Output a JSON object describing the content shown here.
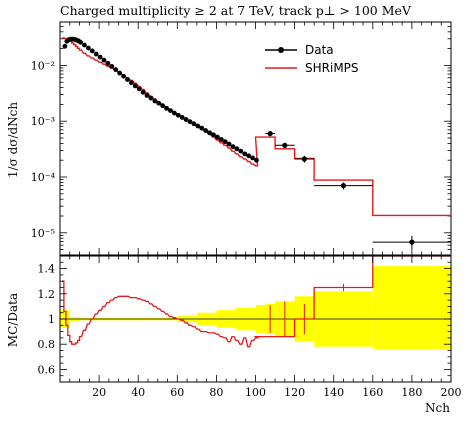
{
  "chart_data": {
    "type": "line",
    "title": "Charged multiplicity ≥ 2 at 7 TeV, track p⊥ > 100 MeV",
    "main_panel": {
      "xlim": [
        0,
        200
      ],
      "ylim": [
        4e-06,
        0.06
      ],
      "yscale": "log",
      "ylabel": "1/σ dσ/dNch",
      "y_ticks": [
        {
          "value": 0.01,
          "label": "10⁻²"
        },
        {
          "value": 0.001,
          "label": "10⁻³"
        },
        {
          "value": 0.0001,
          "label": "10⁻⁴"
        },
        {
          "value": 1e-05,
          "label": "10⁻⁵"
        }
      ],
      "legend": {
        "placement": "top-right",
        "entries": [
          {
            "label": "Data",
            "color": "#000000",
            "marker": "dot-errorbar"
          },
          {
            "label": "SHRiMPS",
            "color": "#e41a1c",
            "marker": "line"
          }
        ]
      }
    },
    "ratio_panel": {
      "ylabel": "MC/Data",
      "ylim": [
        0.5,
        1.5
      ],
      "y_ticks": [
        {
          "value": 0.6,
          "label": "0.6"
        },
        {
          "value": 0.8,
          "label": "0.8"
        },
        {
          "value": 1.0,
          "label": "1"
        },
        {
          "value": 1.2,
          "label": "1.2"
        },
        {
          "value": 1.4,
          "label": "1.4"
        }
      ],
      "band_color": "#ffff00"
    },
    "x_axis": {
      "xlabel": "Nch",
      "x_ticks": [
        {
          "value": 20,
          "label": "20"
        },
        {
          "value": 40,
          "label": "40"
        },
        {
          "value": 60,
          "label": "60"
        },
        {
          "value": 80,
          "label": "80"
        },
        {
          "value": 100,
          "label": "100"
        },
        {
          "value": 120,
          "label": "120"
        },
        {
          "value": 140,
          "label": "140"
        },
        {
          "value": 160,
          "label": "160"
        },
        {
          "value": 180,
          "label": "180"
        },
        {
          "value": 200,
          "label": "200"
        }
      ]
    },
    "data_fine": [
      [
        2,
        0.022
      ],
      [
        3,
        0.027
      ],
      [
        4,
        0.029
      ],
      [
        5,
        0.0295
      ],
      [
        6,
        0.0295
      ],
      [
        7,
        0.0292
      ],
      [
        8,
        0.0285
      ],
      [
        9,
        0.0275
      ],
      [
        10,
        0.026
      ],
      [
        12,
        0.0232
      ],
      [
        14,
        0.0205
      ],
      [
        16,
        0.0182
      ],
      [
        18,
        0.016
      ],
      [
        20,
        0.0141
      ],
      [
        22,
        0.0124
      ],
      [
        24,
        0.0109
      ],
      [
        26,
        0.0096
      ],
      [
        28,
        0.0084
      ],
      [
        30,
        0.0073
      ],
      [
        32,
        0.0064
      ],
      [
        34,
        0.0056
      ],
      [
        36,
        0.0049
      ],
      [
        38,
        0.0043
      ],
      [
        40,
        0.0038
      ],
      [
        42,
        0.0033
      ],
      [
        44,
        0.0029
      ],
      [
        46,
        0.0026
      ],
      [
        48,
        0.0023
      ],
      [
        50,
        0.0021
      ],
      [
        52,
        0.0019
      ],
      [
        54,
        0.0017
      ],
      [
        56,
        0.00155
      ],
      [
        58,
        0.0014
      ],
      [
        60,
        0.00128
      ],
      [
        62,
        0.00117
      ],
      [
        64,
        0.00107
      ],
      [
        66,
        0.00098
      ],
      [
        68,
        0.0009
      ],
      [
        70,
        0.00082
      ],
      [
        72,
        0.00075
      ],
      [
        74,
        0.00068
      ],
      [
        76,
        0.00062
      ],
      [
        78,
        0.00057
      ],
      [
        80,
        0.00052
      ],
      [
        82,
        0.00047
      ],
      [
        84,
        0.00043
      ],
      [
        86,
        0.00039
      ],
      [
        88,
        0.00035
      ],
      [
        90,
        0.00032
      ],
      [
        92,
        0.00029
      ],
      [
        94,
        0.00026
      ],
      [
        96,
        0.00024
      ],
      [
        98,
        0.00022
      ],
      [
        100,
        0.0002
      ]
    ],
    "data_wide": [
      {
        "x": 107.5,
        "xlo": 105,
        "xhi": 110,
        "y": 0.0006,
        "ylo": 0.00054,
        "yhi": 0.00066
      },
      {
        "x": 115,
        "xlo": 110,
        "xhi": 120,
        "y": 0.00037,
        "ylo": 0.00033,
        "yhi": 0.00041
      },
      {
        "x": 125,
        "xlo": 120,
        "xhi": 130,
        "y": 0.00021,
        "ylo": 0.00018,
        "yhi": 0.00024
      },
      {
        "x": 145,
        "xlo": 130,
        "xhi": 160,
        "y": 7e-05,
        "ylo": 6e-05,
        "yhi": 8e-05
      },
      {
        "x": 180,
        "xlo": 160,
        "xhi": 200,
        "y": 6.8e-06,
        "ylo": 5.2e-06,
        "yhi": 8.8e-06
      }
    ],
    "mc_fine": [
      [
        1,
        0.031
      ],
      [
        2,
        0.0305
      ],
      [
        3,
        0.0298
      ],
      [
        4,
        0.0285
      ],
      [
        5,
        0.027
      ],
      [
        6,
        0.0252
      ],
      [
        7,
        0.0235
      ],
      [
        8,
        0.0218
      ],
      [
        9,
        0.0203
      ],
      [
        10,
        0.0188
      ],
      [
        12,
        0.0165
      ],
      [
        14,
        0.0148
      ],
      [
        16,
        0.0135
      ],
      [
        18,
        0.0124
      ],
      [
        20,
        0.0114
      ],
      [
        22,
        0.0105
      ],
      [
        24,
        0.0097
      ],
      [
        26,
        0.0089
      ],
      [
        28,
        0.0081
      ],
      [
        30,
        0.0074
      ],
      [
        32,
        0.0067
      ],
      [
        34,
        0.006
      ],
      [
        36,
        0.0054
      ],
      [
        38,
        0.0048
      ],
      [
        40,
        0.0042
      ],
      [
        42,
        0.0037
      ],
      [
        44,
        0.0032
      ],
      [
        46,
        0.0028
      ],
      [
        48,
        0.0025
      ],
      [
        50,
        0.0022
      ],
      [
        52,
        0.002
      ],
      [
        54,
        0.0018
      ],
      [
        56,
        0.0016
      ],
      [
        58,
        0.00145
      ],
      [
        60,
        0.0013
      ],
      [
        62,
        0.00118
      ],
      [
        64,
        0.00107
      ],
      [
        66,
        0.00097
      ],
      [
        68,
        0.00088
      ],
      [
        70,
        0.0008
      ],
      [
        72,
        0.00072
      ],
      [
        74,
        0.00065
      ],
      [
        76,
        0.00058
      ],
      [
        78,
        0.00052
      ],
      [
        80,
        0.00046
      ],
      [
        82,
        0.00041
      ],
      [
        84,
        0.00037
      ],
      [
        86,
        0.00033
      ],
      [
        88,
        0.00029
      ],
      [
        90,
        0.00026
      ],
      [
        92,
        0.00023
      ],
      [
        94,
        0.00021
      ],
      [
        96,
        0.00019
      ],
      [
        98,
        0.00017
      ],
      [
        100,
        0.000158
      ]
    ],
    "mc_wide": [
      {
        "xlo": 100,
        "xhi": 110,
        "y": 0.00052
      },
      {
        "xlo": 110,
        "xhi": 120,
        "y": 0.00032
      },
      {
        "xlo": 120,
        "xhi": 130,
        "y": 0.000215
      },
      {
        "xlo": 130,
        "xhi": 160,
        "y": 8.8e-05
      },
      {
        "xlo": 160,
        "xhi": 200,
        "y": 2.05e-05
      }
    ],
    "ratio_fine": [
      [
        1,
        1.3
      ],
      [
        2,
        1.06
      ],
      [
        3,
        0.95
      ],
      [
        4,
        0.87
      ],
      [
        5,
        0.82
      ],
      [
        6,
        0.8
      ],
      [
        7,
        0.8
      ],
      [
        8,
        0.81
      ],
      [
        9,
        0.83
      ],
      [
        10,
        0.86
      ],
      [
        12,
        0.91
      ],
      [
        14,
        0.96
      ],
      [
        16,
        1.0
      ],
      [
        18,
        1.04
      ],
      [
        20,
        1.07
      ],
      [
        22,
        1.1
      ],
      [
        24,
        1.13
      ],
      [
        26,
        1.15
      ],
      [
        28,
        1.17
      ],
      [
        30,
        1.18
      ],
      [
        32,
        1.18
      ],
      [
        34,
        1.18
      ],
      [
        36,
        1.17
      ],
      [
        38,
        1.17
      ],
      [
        40,
        1.16
      ],
      [
        42,
        1.15
      ],
      [
        44,
        1.14
      ],
      [
        46,
        1.12
      ],
      [
        48,
        1.1
      ],
      [
        50,
        1.08
      ],
      [
        52,
        1.06
      ],
      [
        54,
        1.04
      ],
      [
        56,
        1.02
      ],
      [
        58,
        1.01
      ],
      [
        60,
        1.0
      ],
      [
        62,
        0.99
      ],
      [
        64,
        0.97
      ],
      [
        66,
        0.95
      ],
      [
        68,
        0.94
      ],
      [
        70,
        0.92
      ],
      [
        72,
        0.9
      ],
      [
        74,
        0.9
      ],
      [
        76,
        0.89
      ],
      [
        78,
        0.89
      ],
      [
        80,
        0.88
      ],
      [
        82,
        0.86
      ],
      [
        84,
        0.85
      ],
      [
        86,
        0.82
      ],
      [
        88,
        0.86
      ],
      [
        90,
        0.83
      ],
      [
        92,
        0.8
      ],
      [
        94,
        0.85
      ],
      [
        96,
        0.78
      ],
      [
        98,
        0.83
      ],
      [
        100,
        0.85
      ]
    ],
    "ratio_wide": [
      {
        "xlo": 100,
        "xhi": 110,
        "y": 0.86
      },
      {
        "xlo": 110,
        "xhi": 120,
        "y": 0.86
      },
      {
        "xlo": 120,
        "xhi": 130,
        "y": 1.0
      },
      {
        "xlo": 130,
        "xhi": 160,
        "y": 1.25
      },
      {
        "xlo": 160,
        "xhi": 200,
        "y": 1.5
      }
    ],
    "ratio_errorbars": [
      {
        "x": 107.5,
        "xlo": 105,
        "xhi": 110,
        "ylo": 0.89,
        "yhi": 1.11
      },
      {
        "x": 115,
        "xlo": 110,
        "xhi": 120,
        "ylo": 0.86,
        "yhi": 1.14
      },
      {
        "x": 125,
        "xlo": 120,
        "xhi": 130,
        "ylo": 0.88,
        "yhi": 1.12
      },
      {
        "x": 145,
        "xlo": 130,
        "xhi": 160,
        "ylo": 1.22,
        "yhi": 1.28
      },
      {
        "x": 180,
        "xlo": 160,
        "xhi": 200,
        "ylo": 1.49,
        "yhi": 1.51
      }
    ],
    "uncertainty_band": [
      {
        "xlo": 0,
        "xhi": 5,
        "lo": 0.93,
        "hi": 1.07
      },
      {
        "xlo": 5,
        "xhi": 10,
        "lo": 0.985,
        "hi": 1.015
      },
      {
        "xlo": 10,
        "xhi": 60,
        "lo": 0.99,
        "hi": 1.01
      },
      {
        "xlo": 60,
        "xhi": 70,
        "lo": 0.975,
        "hi": 1.025
      },
      {
        "xlo": 70,
        "xhi": 80,
        "lo": 0.95,
        "hi": 1.05
      },
      {
        "xlo": 80,
        "xhi": 90,
        "lo": 0.93,
        "hi": 1.07
      },
      {
        "xlo": 90,
        "xhi": 100,
        "lo": 0.91,
        "hi": 1.09
      },
      {
        "xlo": 100,
        "xhi": 105,
        "lo": 0.89,
        "hi": 1.11
      },
      {
        "xlo": 105,
        "xhi": 110,
        "lo": 0.88,
        "hi": 1.12
      },
      {
        "xlo": 110,
        "xhi": 120,
        "lo": 0.86,
        "hi": 1.14
      },
      {
        "xlo": 120,
        "xhi": 130,
        "lo": 0.82,
        "hi": 1.18
      },
      {
        "xlo": 130,
        "xhi": 160,
        "lo": 0.78,
        "hi": 1.22
      },
      {
        "xlo": 160,
        "xhi": 200,
        "lo": 0.76,
        "hi": 1.42
      }
    ]
  },
  "colors": {
    "data": "#000000",
    "mc": "#e41a1c",
    "band": "#ffff00"
  }
}
